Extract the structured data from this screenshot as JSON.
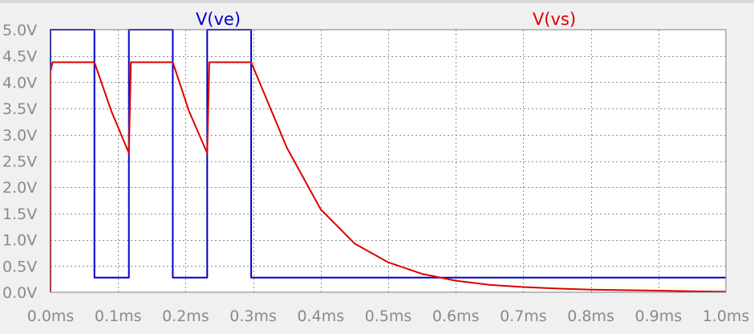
{
  "chart_data": {
    "type": "line",
    "x_unit": "ms",
    "y_unit": "V",
    "xlim": [
      0,
      1.0
    ],
    "ylim": [
      0,
      5.0
    ],
    "grid": true,
    "background_color": "#ffffff",
    "grid_color": "#909090",
    "x_tick_labels": [
      "0.0ms",
      "0.1ms",
      "0.2ms",
      "0.3ms",
      "0.4ms",
      "0.5ms",
      "0.6ms",
      "0.7ms",
      "0.8ms",
      "0.9ms",
      "1.0ms"
    ],
    "y_tick_labels": [
      "0.0V",
      "0.5V",
      "1.0V",
      "1.5V",
      "2.0V",
      "2.5V",
      "3.0V",
      "3.5V",
      "4.0V",
      "4.5V",
      "5.0V"
    ],
    "series": [
      {
        "name": "V(ve)",
        "color": "#0000c8",
        "x": [
          0.0,
          0.0,
          0.065,
          0.065,
          0.116,
          0.116,
          0.181,
          0.181,
          0.232,
          0.232,
          0.297,
          0.297,
          1.0
        ],
        "y": [
          0.0,
          5.0,
          5.0,
          0.28,
          0.28,
          5.0,
          5.0,
          0.28,
          0.28,
          5.0,
          5.0,
          0.28,
          0.28
        ]
      },
      {
        "name": "V(vs)",
        "color": "#dd0000",
        "x": [
          0.0,
          0.0,
          0.003,
          0.065,
          0.09,
          0.116,
          0.116,
          0.119,
          0.181,
          0.205,
          0.232,
          0.232,
          0.235,
          0.297,
          0.35,
          0.4,
          0.45,
          0.5,
          0.55,
          0.6,
          0.65,
          0.7,
          0.75,
          0.8,
          0.85,
          0.9,
          0.95,
          1.0
        ],
        "y": [
          0.0,
          4.2,
          4.38,
          4.38,
          3.45,
          2.65,
          2.65,
          4.38,
          4.38,
          3.45,
          2.65,
          2.65,
          4.38,
          4.38,
          2.75,
          1.58,
          0.93,
          0.57,
          0.35,
          0.22,
          0.14,
          0.1,
          0.07,
          0.05,
          0.04,
          0.03,
          0.02,
          0.01
        ]
      }
    ]
  }
}
